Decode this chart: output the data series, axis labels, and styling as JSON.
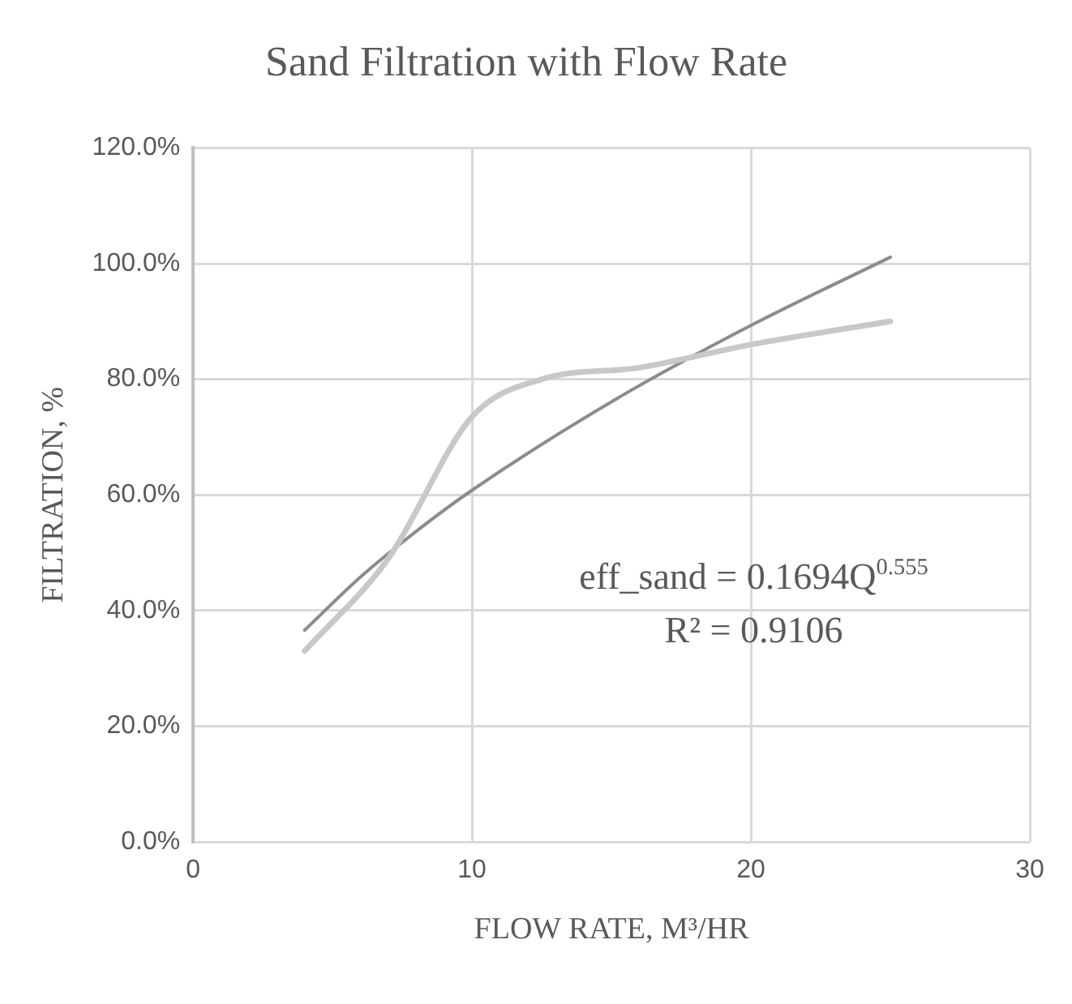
{
  "chart_data": {
    "type": "line",
    "title": "Sand Filtration with Flow Rate",
    "xlabel": "FLOW RATE, M³/HR",
    "ylabel": "FILTRATION, %",
    "annotations": [
      "eff_sand = 0.1694Q$^{0.555}$",
      "R² = 0.9106"
    ],
    "series": [
      {
        "color": "#c8c8c8",
        "x": [
          4,
          7,
          10,
          12.5,
          16,
          20,
          25
        ],
        "values": [
          33,
          49,
          73.5,
          80,
          82,
          86,
          90
        ]
      },
      {
        "color": "#8c8c8c",
        "x": [
          4,
          6,
          8,
          10,
          15,
          20,
          25
        ],
        "values": [
          36.6,
          45.8,
          53.7,
          60.8,
          76.1,
          89.3,
          101.1
        ]
      }
    ],
    "xlim": [
      0,
      30
    ],
    "xticks": [
      0,
      10,
      20,
      30
    ],
    "ylim": [
      0,
      120
    ],
    "yticks": [
      {
        "value": 0,
        "label": "0.0%"
      },
      {
        "value": 20,
        "label": "20.0%"
      },
      {
        "value": 40,
        "label": "40.0%"
      },
      {
        "value": 60,
        "label": "60.0%"
      },
      {
        "value": 80,
        "label": "80.0%"
      },
      {
        "value": 100,
        "label": "100.0%"
      },
      {
        "value": 120,
        "label": "120.0%"
      }
    ],
    "grid": true,
    "legend": false,
    "marker": "none",
    "line_style": "solid"
  }
}
